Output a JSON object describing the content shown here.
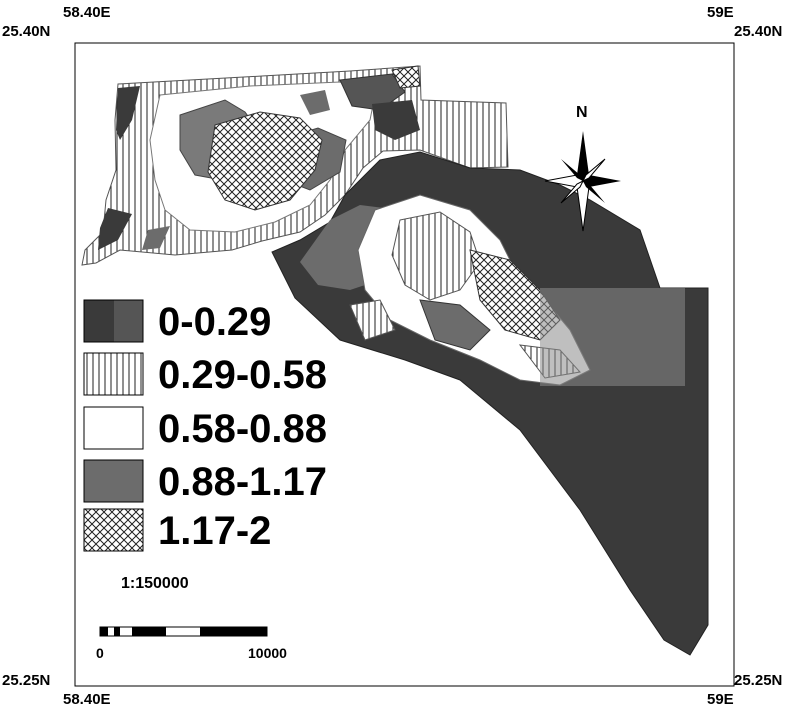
{
  "coords": {
    "top_left_lon": "58.40E",
    "top_right_lon": "59E",
    "top_left_lat": "25.40N",
    "top_right_lat": "25.40N",
    "bottom_left_lat": "25.25N",
    "bottom_right_lat": "25.25N",
    "bottom_left_lon": "58.40E",
    "bottom_right_lon": "59E"
  },
  "north_label": "N",
  "legend": [
    {
      "label": "0-0.29",
      "pattern": "dark"
    },
    {
      "label": "0.29-0.58",
      "pattern": "vertical-lines"
    },
    {
      "label": "0.58-0.88",
      "pattern": "white"
    },
    {
      "label": "0.88-1.17",
      "pattern": "medium-gray"
    },
    {
      "label": "1.17-2",
      "pattern": "crosshatch"
    }
  ],
  "scale": {
    "ratio": "1:150000",
    "start": "0",
    "end": "10000"
  },
  "colors": {
    "dark": "#3a3a3a",
    "medium": "#6c6c6c",
    "light": "#bdbdbd",
    "white": "#ffffff"
  }
}
